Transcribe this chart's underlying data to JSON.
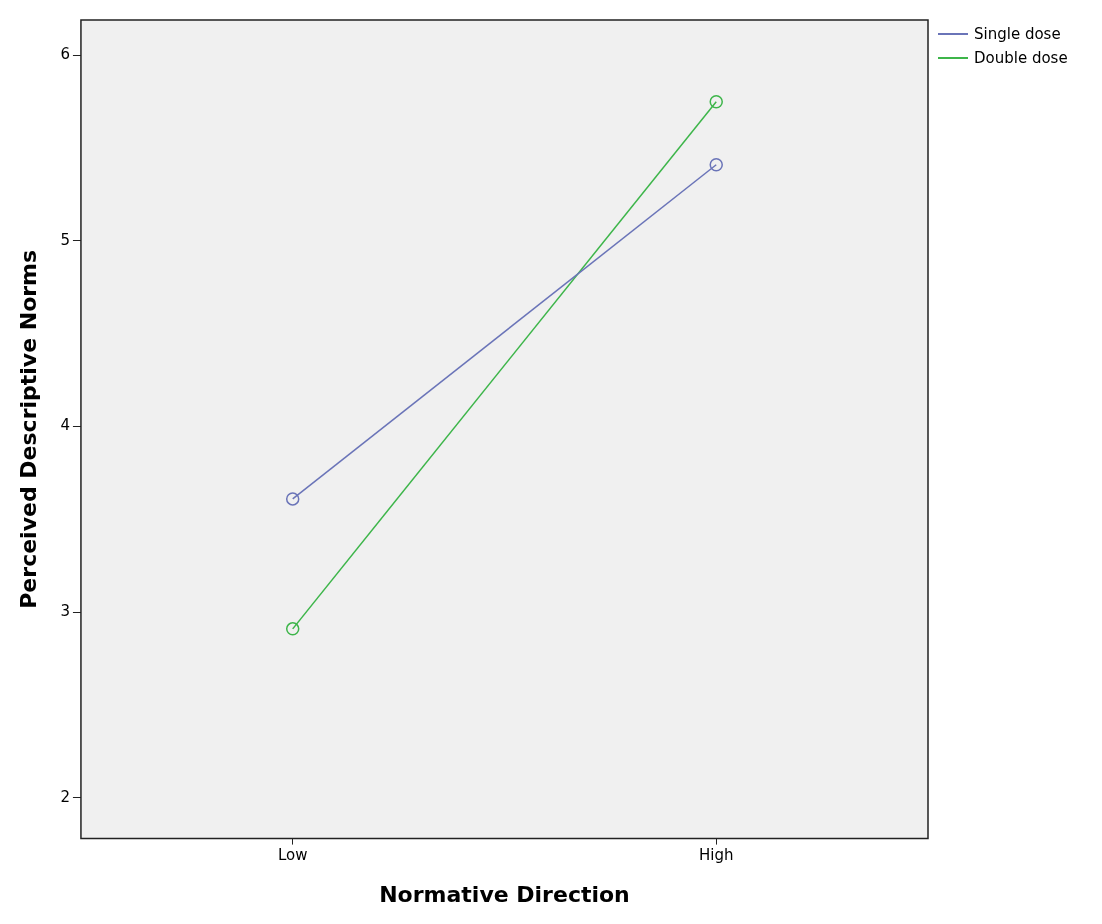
{
  "chart_data": {
    "type": "line",
    "xlabel": "Normative Direction",
    "ylabel": "Perceived Descriptive Norms",
    "categories": [
      "Low",
      "High"
    ],
    "series": [
      {
        "name": "Single dose",
        "color": "#6a74b8",
        "values": [
          3.61,
          5.41
        ]
      },
      {
        "name": "Double dose",
        "color": "#3db54a",
        "values": [
          2.91,
          5.75
        ]
      }
    ],
    "ylim": [
      1.78,
      6.19
    ],
    "yticks": [
      2,
      3,
      4,
      5,
      6
    ],
    "grid": false,
    "legend": "top right",
    "marker": "circle",
    "line_style": "solid"
  }
}
